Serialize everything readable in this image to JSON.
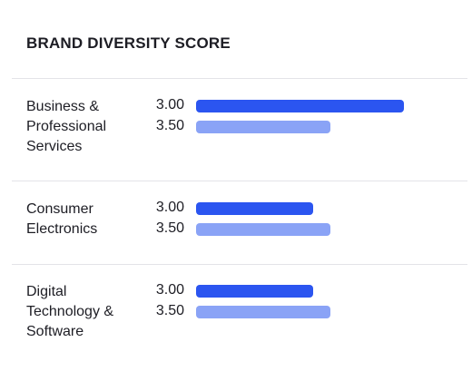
{
  "chart_data": {
    "type": "bar",
    "orientation": "horizontal",
    "title": "BRAND DIVERSITY SCORE",
    "categories": [
      "Business &\nProfessional\nServices",
      "Consumer\nElectronics",
      "Digital\nTechnology &\nSoftware"
    ],
    "series": [
      {
        "color": "#2b55f0",
        "values": [
          3.0,
          3.0,
          3.0
        ],
        "bar_extent": [
          0.975,
          0.55,
          0.55
        ]
      },
      {
        "color": "#8aa3f6",
        "values": [
          3.5,
          3.5,
          3.5
        ],
        "bar_extent": [
          0.63,
          0.63,
          0.63
        ]
      }
    ]
  }
}
